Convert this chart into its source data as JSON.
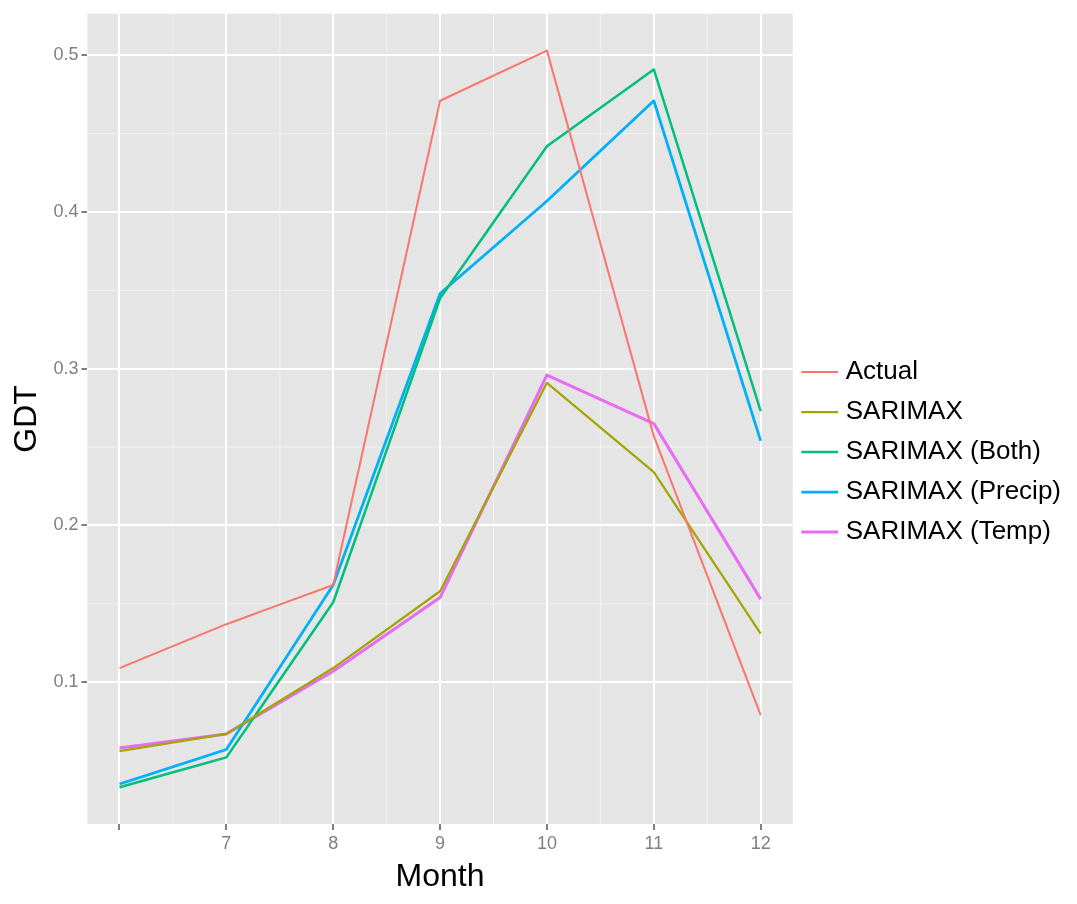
{
  "chart_data": {
    "type": "line",
    "xlabel": "Month",
    "ylabel": "GDT",
    "x": [
      6,
      7,
      8,
      9,
      10,
      11,
      12
    ],
    "xlim": [
      5.7,
      12.3
    ],
    "xticks": [
      {
        "value": 6,
        "label": null
      },
      7,
      8,
      9,
      10,
      11,
      12
    ],
    "ylim": [
      0.0095,
      0.5265
    ],
    "yticks": [
      0.1,
      0.2,
      0.3,
      0.4,
      0.5
    ],
    "grid": true,
    "legend": "right",
    "marker": "none",
    "line_style": "solid",
    "series": [
      {
        "name": "Actual",
        "color": "#f8766d",
        "values": [
          0.109,
          0.137,
          0.162,
          0.471,
          0.503,
          0.257,
          0.079
        ]
      },
      {
        "name": "SARIMAX",
        "color": "#a3a500",
        "values": [
          0.056,
          0.067,
          0.109,
          0.158,
          0.291,
          0.234,
          0.131
        ]
      },
      {
        "name": "SARIMAX (Both)",
        "color": "#00bf7d",
        "values": [
          0.033,
          0.052,
          0.151,
          0.345,
          0.442,
          0.491,
          0.273
        ]
      },
      {
        "name": "SARIMAX (Precip)",
        "color": "#00b0f6",
        "values": [
          0.035,
          0.057,
          0.162,
          0.348,
          0.407,
          0.471,
          0.254
        ]
      },
      {
        "name": "SARIMAX (Temp)",
        "color": "#e76bf3",
        "values": [
          0.058,
          0.067,
          0.107,
          0.154,
          0.296,
          0.265,
          0.153
        ]
      }
    ]
  }
}
